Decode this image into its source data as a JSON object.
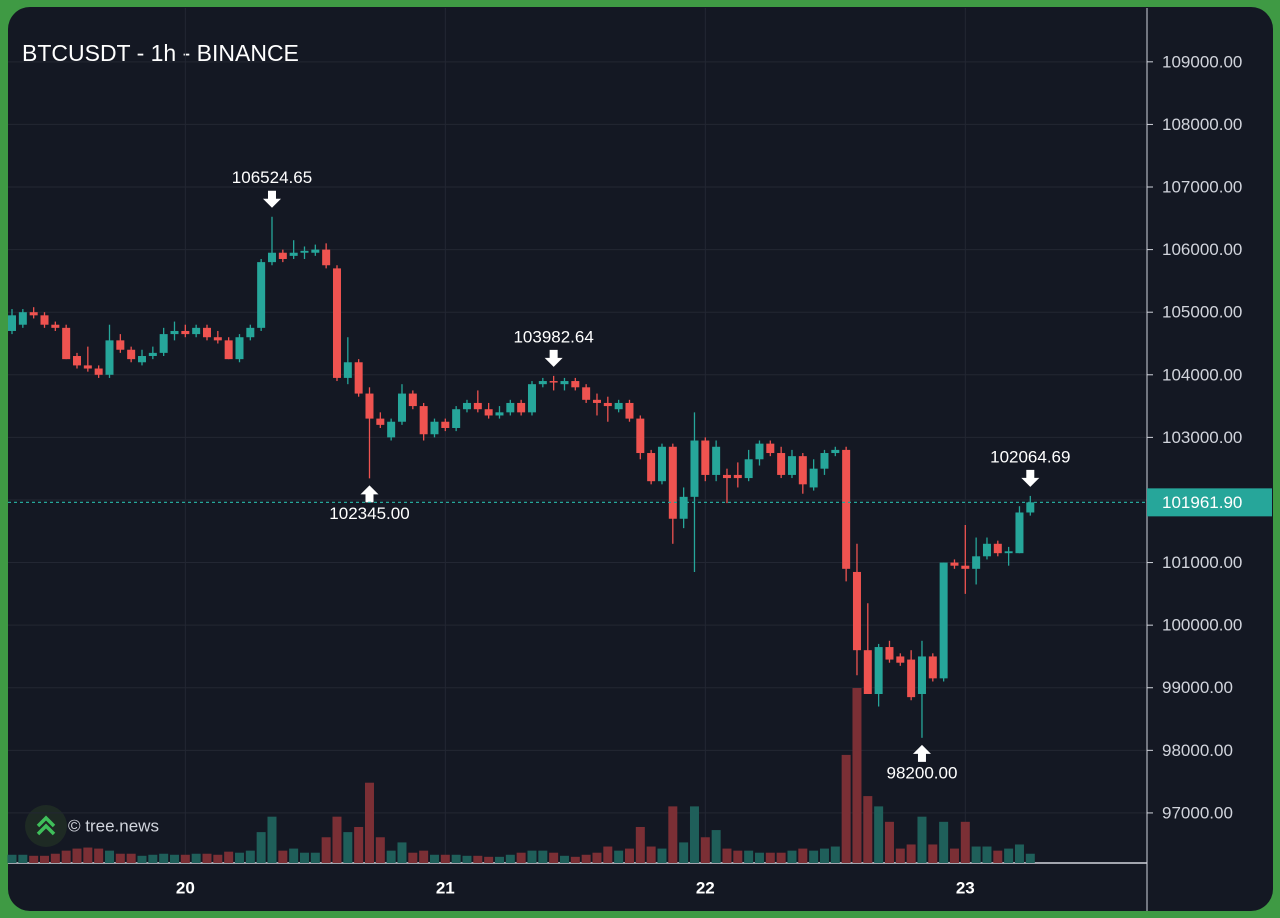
{
  "chart_data": {
    "type": "candlestick",
    "title": "BTCUSDT - 1h - BINANCE",
    "watermark": "© tree.news",
    "up_color": "#26a69a",
    "down_color": "#ef5350",
    "up_volume_color": "#1f5f5a",
    "down_volume_color": "#7b2f35",
    "grid": true,
    "categories": [
      null,
      null,
      null,
      null,
      null,
      null,
      null,
      null,
      null,
      null,
      null,
      null,
      null,
      null,
      null,
      null,
      "20",
      null,
      null,
      null,
      null,
      null,
      null,
      null,
      null,
      null,
      null,
      null,
      null,
      null,
      null,
      null,
      null,
      null,
      null,
      null,
      null,
      null,
      null,
      null,
      "21",
      null,
      null,
      null,
      null,
      null,
      null,
      null,
      null,
      null,
      null,
      null,
      null,
      null,
      null,
      null,
      null,
      null,
      null,
      null,
      null,
      null,
      null,
      null,
      "22",
      null,
      null,
      null,
      null,
      null,
      null,
      null,
      null,
      null,
      null,
      null,
      null,
      null,
      null,
      null,
      null,
      null,
      null,
      null,
      null,
      null,
      null,
      null,
      "23",
      null,
      null,
      null,
      null,
      null,
      null
    ],
    "open": [
      104700,
      104800,
      105000,
      104950,
      104800,
      104750,
      104300,
      104150,
      104100,
      104000,
      104550,
      104400,
      104200,
      104300,
      104350,
      104650,
      104700,
      104650,
      104750,
      104600,
      104550,
      104250,
      104600,
      104750,
      105800,
      105950,
      105900,
      105950,
      105950,
      106000,
      105700,
      103950,
      104200,
      103700,
      103300,
      103000,
      103250,
      103700,
      103500,
      103050,
      103250,
      103150,
      103450,
      103550,
      103450,
      103350,
      103400,
      103550,
      103400,
      103850,
      103900,
      103850,
      103900,
      103800,
      103600,
      103550,
      103450,
      103550,
      103300,
      102750,
      102300,
      102850,
      101700,
      102050,
      102950,
      102400,
      102400,
      102400,
      102350,
      102650,
      102900,
      102750,
      102400,
      102700,
      102200,
      102500,
      102750,
      102800,
      100850,
      99600,
      98900,
      99650,
      99500,
      99450,
      98900,
      99500,
      99150,
      101000,
      100950,
      100900,
      101100,
      101300,
      101150,
      101150,
      101800
    ],
    "high": [
      105050,
      105050,
      105080,
      105000,
      104850,
      104800,
      104350,
      104450,
      104150,
      104800,
      104650,
      104450,
      104400,
      104450,
      104750,
      104850,
      104800,
      104800,
      104800,
      104700,
      104600,
      104650,
      104800,
      105850,
      106524.65,
      106000,
      106150,
      106050,
      106080,
      106100,
      105750,
      104600,
      104250,
      103800,
      103400,
      103300,
      103850,
      103750,
      103550,
      103300,
      103300,
      103500,
      103600,
      103750,
      103550,
      103500,
      103600,
      103600,
      103900,
      103950,
      103982.64,
      103950,
      103950,
      103850,
      103700,
      103650,
      103600,
      103600,
      103350,
      102800,
      102900,
      102900,
      102200,
      103400,
      103000,
      102950,
      102500,
      102600,
      102800,
      102950,
      102950,
      102850,
      102800,
      102750,
      102650,
      102800,
      102850,
      102850,
      101300,
      100350,
      99700,
      99750,
      99550,
      99600,
      99750,
      99550,
      101000,
      101050,
      101600,
      101400,
      101400,
      101350,
      101250,
      101900,
      102064.69
    ],
    "low": [
      104650,
      104750,
      104900,
      104750,
      104700,
      104250,
      104100,
      104050,
      103950,
      103950,
      104350,
      104200,
      104150,
      104250,
      104300,
      104550,
      104600,
      104600,
      104550,
      104500,
      104250,
      104200,
      104550,
      104700,
      105750,
      105800,
      105850,
      105850,
      105900,
      105700,
      103900,
      103850,
      103650,
      102345,
      103150,
      102950,
      103200,
      103450,
      102950,
      103000,
      103100,
      103100,
      103400,
      103400,
      103300,
      103300,
      103350,
      103350,
      103350,
      103800,
      103750,
      103750,
      103750,
      103550,
      103350,
      103250,
      103400,
      103250,
      102650,
      102250,
      102250,
      101300,
      101550,
      100850,
      102300,
      102300,
      101950,
      102200,
      102300,
      102550,
      102700,
      102350,
      102350,
      102100,
      102150,
      102400,
      102700,
      100700,
      99200,
      98900,
      98700,
      99400,
      99350,
      98800,
      98200,
      99100,
      99100,
      100900,
      100500,
      100650,
      101050,
      101100,
      100950,
      101150,
      101750
    ],
    "close": [
      104950,
      105000,
      104950,
      104800,
      104750,
      104250,
      104150,
      104100,
      104000,
      104550,
      104400,
      104250,
      104300,
      104350,
      104650,
      104700,
      104650,
      104750,
      104600,
      104550,
      104250,
      104600,
      104750,
      105800,
      105950,
      105850,
      105950,
      105980,
      106000,
      105750,
      103950,
      104200,
      103700,
      103300,
      103200,
      103250,
      103700,
      103500,
      103050,
      103250,
      103150,
      103450,
      103550,
      103450,
      103350,
      103400,
      103550,
      103400,
      103850,
      103900,
      103880,
      103900,
      103800,
      103600,
      103550,
      103500,
      103550,
      103300,
      102750,
      102300,
      102850,
      101700,
      102050,
      102950,
      102400,
      102850,
      102350,
      102350,
      102650,
      102900,
      102750,
      102400,
      102700,
      102250,
      102500,
      102750,
      102800,
      100900,
      99600,
      98900,
      99650,
      99450,
      99400,
      98850,
      99500,
      99150,
      101000,
      100950,
      100900,
      101100,
      101300,
      101150,
      101180,
      101800,
      101961.9
    ],
    "volume": [
      8,
      8,
      7,
      7,
      9,
      12,
      14,
      15,
      14,
      12,
      9,
      9,
      7,
      8,
      9,
      8,
      8,
      9,
      9,
      8,
      11,
      10,
      12,
      30,
      45,
      12,
      14,
      10,
      10,
      25,
      45,
      30,
      35,
      78,
      25,
      12,
      20,
      10,
      12,
      8,
      8,
      8,
      7,
      7,
      6,
      6,
      8,
      10,
      12,
      12,
      10,
      7,
      6,
      8,
      10,
      16,
      12,
      14,
      35,
      16,
      14,
      55,
      20,
      55,
      25,
      32,
      14,
      12,
      12,
      10,
      10,
      10,
      12,
      14,
      12,
      14,
      16,
      105,
      170,
      65,
      55,
      40,
      14,
      18,
      45,
      18,
      40,
      14,
      40,
      16,
      16,
      12,
      14,
      18,
      9
    ],
    "high_labels": [
      null,
      null,
      null,
      null,
      null,
      null,
      null,
      null,
      null,
      null,
      null,
      null,
      null,
      null,
      null,
      null,
      null,
      null,
      null,
      null,
      null,
      null,
      null,
      null,
      "106524.65",
      null,
      null,
      null,
      null,
      null,
      null,
      null,
      null,
      null,
      null,
      null,
      null,
      null,
      null,
      null,
      null,
      null,
      null,
      null,
      null,
      null,
      null,
      null,
      null,
      null,
      "103982.64",
      null,
      null,
      null,
      null,
      null,
      null,
      null,
      null,
      null,
      null,
      null,
      null,
      null,
      null,
      null,
      null,
      null,
      null,
      null,
      null,
      null,
      null,
      null,
      null,
      null,
      null,
      null,
      null,
      null,
      null,
      null,
      null,
      null,
      null,
      null,
      null,
      null,
      null,
      null,
      null,
      null,
      null,
      null,
      "102064.69"
    ],
    "low_labels": [
      null,
      null,
      null,
      null,
      null,
      null,
      null,
      null,
      null,
      null,
      null,
      null,
      null,
      null,
      null,
      null,
      null,
      null,
      null,
      null,
      null,
      null,
      null,
      null,
      null,
      null,
      null,
      null,
      null,
      null,
      null,
      null,
      null,
      "102345.00",
      null,
      null,
      null,
      null,
      null,
      null,
      null,
      null,
      null,
      null,
      null,
      null,
      null,
      null,
      null,
      null,
      null,
      null,
      null,
      null,
      null,
      null,
      null,
      null,
      null,
      null,
      null,
      null,
      null,
      null,
      null,
      null,
      null,
      null,
      null,
      null,
      null,
      null,
      null,
      null,
      null,
      null,
      null,
      null,
      null,
      null,
      null,
      null,
      null,
      null,
      "98200.00",
      null,
      null,
      null,
      null,
      null,
      null,
      null,
      null,
      null,
      null
    ],
    "last_price": {
      "value": 101961.9,
      "label": "101961.90",
      "color": "#26a69a"
    },
    "ylim": [
      96200,
      109860
    ],
    "yticks": [
      {
        "value": 97000,
        "label": "97000.00"
      },
      {
        "value": 98000,
        "label": "98000.00"
      },
      {
        "value": 99000,
        "label": "99000.00"
      },
      {
        "value": 100000,
        "label": "100000.00"
      },
      {
        "value": 101000,
        "label": "101000.00"
      },
      {
        "value": 102000,
        "label": "102000.00"
      },
      {
        "value": 103000,
        "label": "103000.00"
      },
      {
        "value": 104000,
        "label": "104000.00"
      },
      {
        "value": 105000,
        "label": "105000.00"
      },
      {
        "value": 106000,
        "label": "106000.00"
      },
      {
        "value": 107000,
        "label": "107000.00"
      },
      {
        "value": 108000,
        "label": "108000.00"
      },
      {
        "value": 109000,
        "label": "109000.00"
      }
    ]
  }
}
